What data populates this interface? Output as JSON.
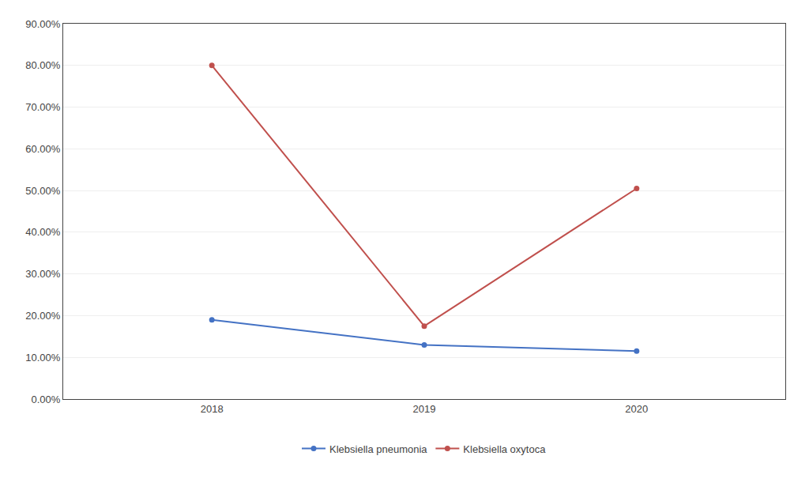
{
  "chart_data": {
    "type": "line",
    "x": [
      2018,
      2019,
      2020
    ],
    "series": [
      {
        "name": "Klebsiella pneumonia",
        "color": "#4472C4",
        "values": [
          0.19,
          0.13,
          0.115
        ]
      },
      {
        "name": "Klebsiella oxytoca",
        "color": "#C0504D",
        "values": [
          0.8,
          0.175,
          0.505
        ]
      }
    ],
    "xlim": [
      2017.3,
      2020.7
    ],
    "xticks": [
      2018,
      2019,
      2020
    ],
    "ylim": [
      0.0,
      0.9
    ],
    "yticks": [
      {
        "value": 0.0,
        "label": "0.00%"
      },
      {
        "value": 0.1,
        "label": "10.00%"
      },
      {
        "value": 0.2,
        "label": "20.00%"
      },
      {
        "value": 0.3,
        "label": "30.00%"
      },
      {
        "value": 0.4,
        "label": "40.00%"
      },
      {
        "value": 0.5,
        "label": "50.00%"
      },
      {
        "value": 0.6,
        "label": "60.00%"
      },
      {
        "value": 0.7,
        "label": "70.00%"
      },
      {
        "value": 0.8,
        "label": "80.00%"
      },
      {
        "value": 0.9,
        "label": "90.00%"
      }
    ],
    "grid": "y",
    "legend": "bottom",
    "marker": "circle"
  }
}
